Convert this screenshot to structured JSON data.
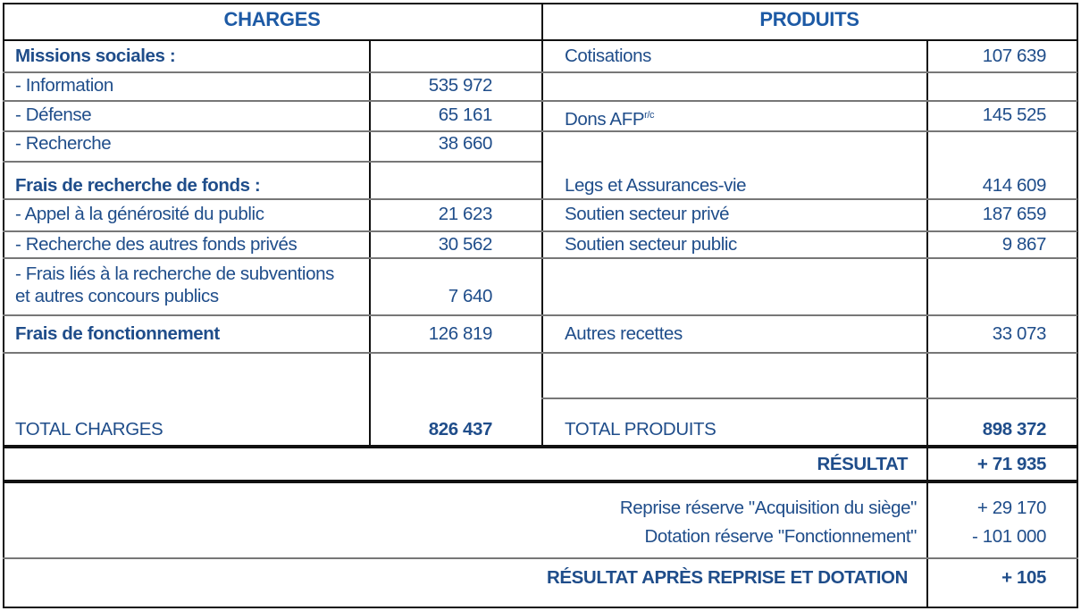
{
  "headers": {
    "charges": "CHARGES",
    "produits": "PRODUITS"
  },
  "charges": [
    {
      "label": "Missions sociales :",
      "value": ""
    },
    {
      "label": "- Information",
      "value": "535 972"
    },
    {
      "label": "- Défense",
      "value": "65 161"
    },
    {
      "label": "- Recherche",
      "value": "38 660"
    },
    {
      "label": "Frais de recherche de fonds :",
      "value": ""
    },
    {
      "label": "- Appel à la générosité du public",
      "value": "21 623"
    },
    {
      "label": "- Recherche des autres fonds privés",
      "value": "30 562"
    },
    {
      "label": "- Frais liés à la recherche de subventions",
      "label2": "et autres concours publics",
      "value": "7 640"
    },
    {
      "label": "Frais de fonctionnement",
      "value": "126 819"
    }
  ],
  "produits": [
    {
      "label": "Cotisations",
      "value": "107 639"
    },
    {
      "label": "Dons AFP",
      "sup": "r/c",
      "value": "145 525"
    },
    {
      "label": "Legs et Assurances-vie",
      "value": "414 609"
    },
    {
      "label": "Soutien secteur privé",
      "value": "187 659"
    },
    {
      "label": "Soutien secteur public",
      "value": "9 867"
    },
    {
      "label": "Autres recettes",
      "value": "33 073"
    }
  ],
  "totals": {
    "charges_label": "TOTAL CHARGES",
    "charges_value": "826 437",
    "produits_label": "TOTAL PRODUITS",
    "produits_value": "898 372"
  },
  "resultat": {
    "label": "RÉSULTAT",
    "value": "+ 71 935"
  },
  "adjustments": [
    {
      "label": "Reprise réserve \"Acquisition du siège\"",
      "value": "+ 29 170"
    },
    {
      "label": "Dotation réserve \"Fonctionnement\"",
      "value": "- 101 000"
    }
  ],
  "final": {
    "label": "RÉSULTAT APRÈS REPRISE ET DOTATION",
    "value": "+ 105"
  },
  "colors": {
    "text": "#1f4d8a",
    "header": "#1d5aa5"
  }
}
